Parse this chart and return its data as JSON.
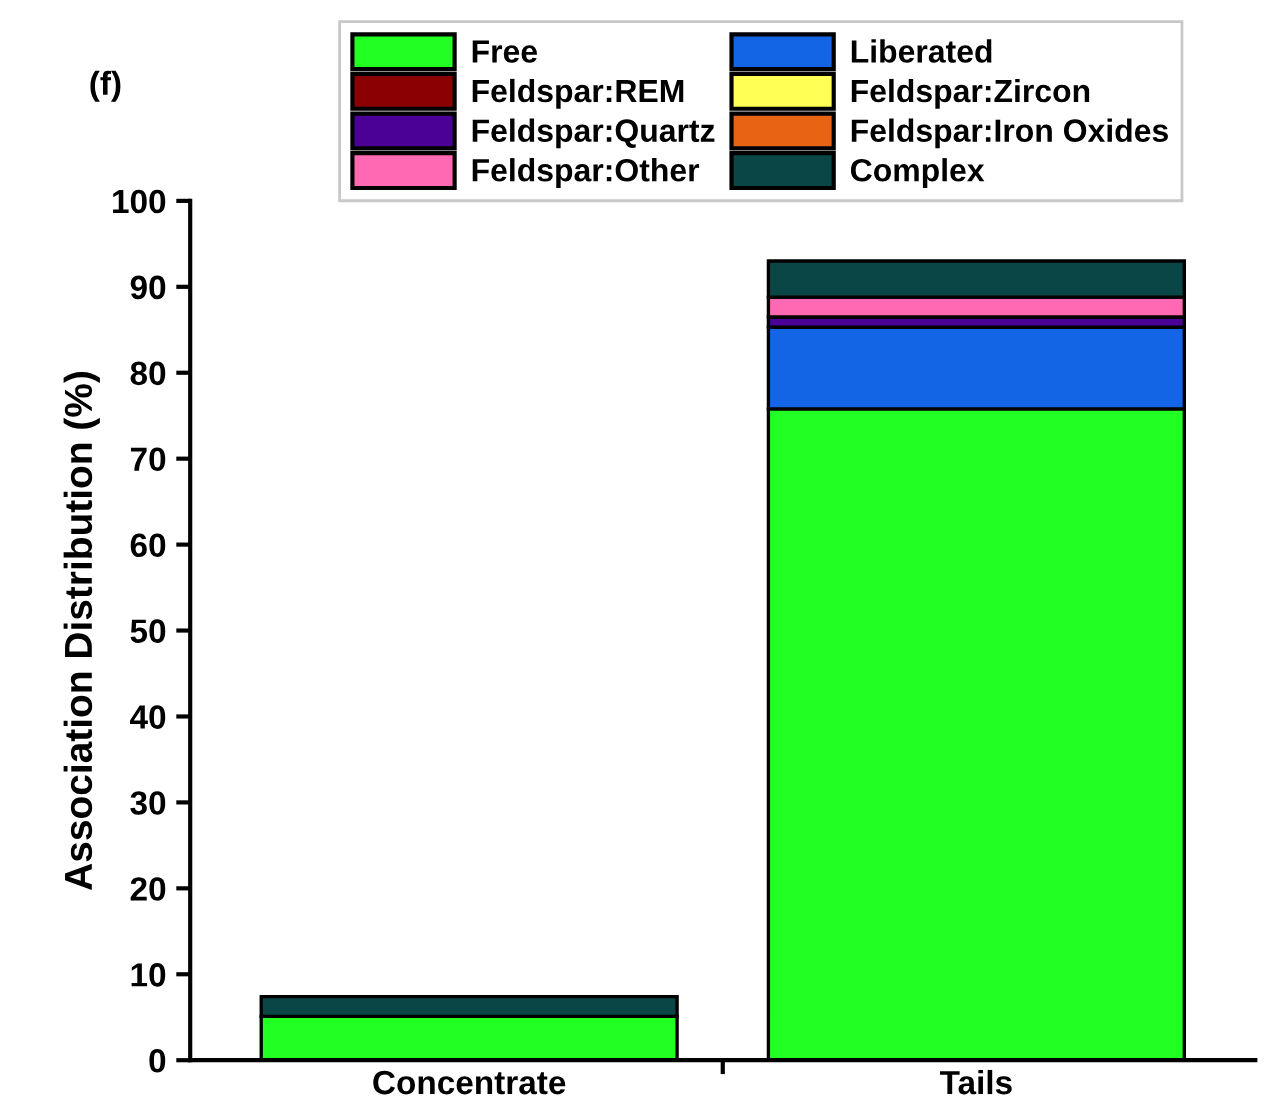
{
  "chart_data": {
    "type": "bar",
    "stacked": true,
    "ylabel": "Association Distribution (%)",
    "annotations": [
      "(f)"
    ],
    "categories": [
      "Concentrate",
      "Tails"
    ],
    "ylim": [
      0,
      100
    ],
    "yticks": [
      0,
      10,
      20,
      30,
      40,
      50,
      60,
      70,
      80,
      90,
      100
    ],
    "grid": false,
    "legend": "top",
    "series": [
      {
        "name": "Free",
        "color": "#22ff22",
        "values": [
          5.1,
          75.8
        ]
      },
      {
        "name": "Liberated",
        "color": "#1464e6",
        "values": [
          0,
          9.5
        ]
      },
      {
        "name": "Feldspar:REM",
        "color": "#8b0000",
        "values": [
          0,
          0
        ]
      },
      {
        "name": "Feldspar:Zircon",
        "color": "#ffff55",
        "values": [
          0,
          0
        ]
      },
      {
        "name": "Feldspar:Quartz",
        "color": "#4b0096",
        "values": [
          0,
          1.2
        ]
      },
      {
        "name": "Feldspar:Iron Oxides",
        "color": "#e86414",
        "values": [
          0,
          0
        ]
      },
      {
        "name": "Feldspar:Other",
        "color": "#ff69b4",
        "values": [
          0,
          2.3
        ]
      },
      {
        "name": "Complex",
        "color": "#0a4646",
        "values": [
          2.3,
          4.2
        ]
      }
    ]
  }
}
